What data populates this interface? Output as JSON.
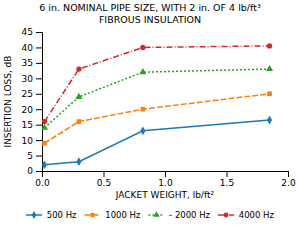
{
  "chart_data": {
    "type": "line",
    "title": "6 in. NOMINAL PIPE SIZE, WITH 2 in. OF 4 lb/ft³",
    "subtitle": "FIBROUS INSULATION",
    "x_label": "JACKET WEIGHT, lb/ft²",
    "y_label": "INSERTION LOSS, dB",
    "x": [
      0.02,
      0.3,
      0.82,
      1.85
    ],
    "series": [
      {
        "name": " 500 Hz",
        "values": [
          2,
          3,
          13,
          16.5
        ],
        "marker": "diamond",
        "line_style": "solid"
      },
      {
        "name": " 1000 Hz",
        "values": [
          9,
          16,
          20,
          25
        ],
        "marker": "square",
        "line_style": "dashed"
      },
      {
        "name": " - 2000 Hz",
        "values": [
          14,
          24,
          32,
          33
        ],
        "marker": "triangle",
        "line_style": "dotted"
      },
      {
        "name": " 4000 Hz",
        "values": [
          16,
          33,
          40,
          40.5
        ],
        "marker": "circle",
        "line_style": "dashdot"
      }
    ],
    "xlim": [
      0,
      2
    ],
    "ylim": [
      0,
      45
    ],
    "xticks": [
      {
        "value": 0,
        "label": "0.0"
      },
      0.5,
      {
        "value": 1,
        "label": "1.0"
      },
      1.5,
      {
        "value": 2,
        "label": "2.0"
      }
    ],
    "yticks": [
      0,
      5,
      10,
      15,
      20,
      25,
      30,
      35,
      40,
      45
    ],
    "grid": false,
    "legend": "bottom"
  }
}
